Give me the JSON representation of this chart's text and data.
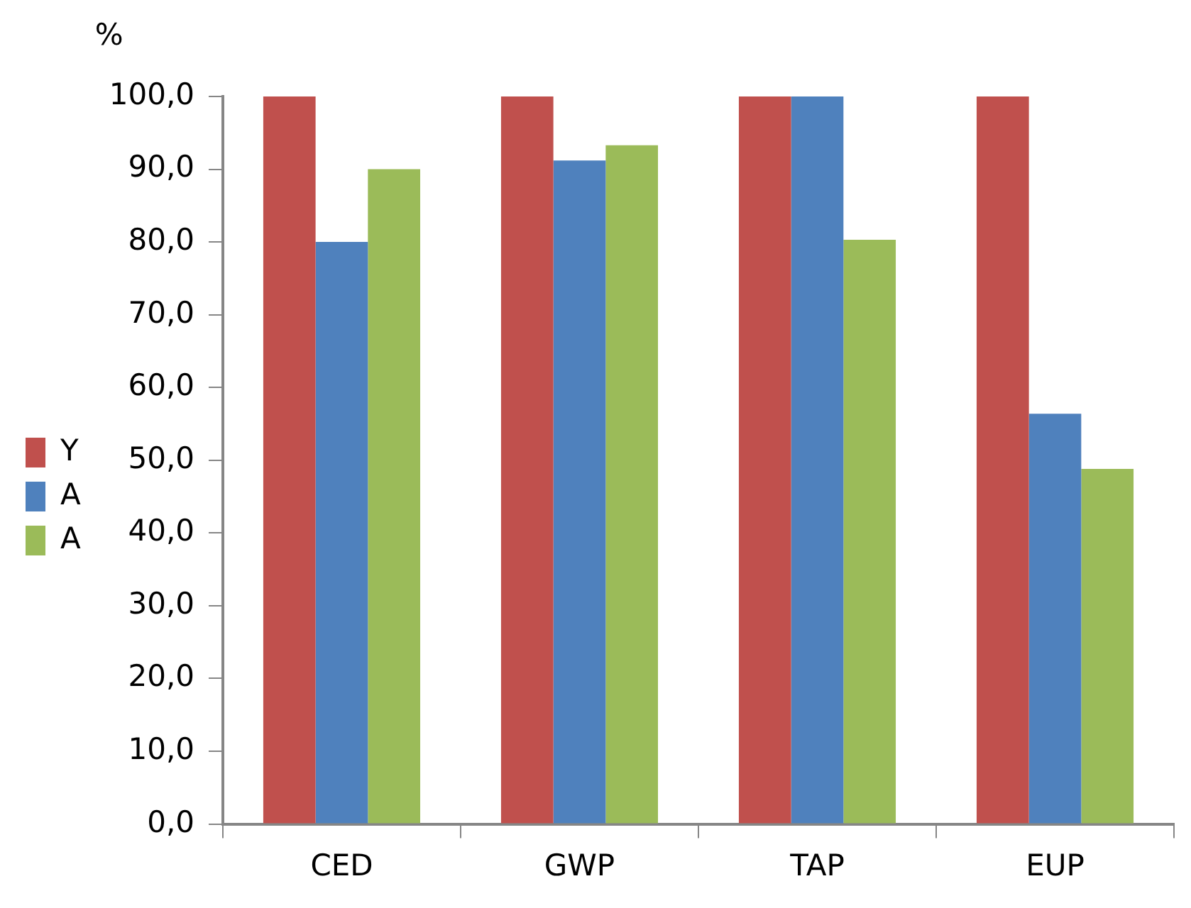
{
  "chart_data": {
    "type": "bar",
    "ylabel": "%",
    "categories": [
      "CED",
      "GWP",
      "TAP",
      "EUP"
    ],
    "series": [
      {
        "name": "Y",
        "color": "#c0504d",
        "values": [
          100,
          100,
          100,
          100
        ]
      },
      {
        "name": "A",
        "color": "#4f81bd",
        "values": [
          80,
          91.2,
          100,
          56.4
        ]
      },
      {
        "name": "A",
        "color": "#9bbb59",
        "values": [
          90,
          93.3,
          80.3,
          48.8
        ]
      }
    ],
    "ylim": [
      0,
      100
    ],
    "yticks": [
      {
        "value": 0,
        "label": "0,0"
      },
      {
        "value": 10,
        "label": "10,0"
      },
      {
        "value": 20,
        "label": "20,0"
      },
      {
        "value": 30,
        "label": "30,0"
      },
      {
        "value": 40,
        "label": "40,0"
      },
      {
        "value": 50,
        "label": "50,0"
      },
      {
        "value": 60,
        "label": "60,0"
      },
      {
        "value": 70,
        "label": "70,0"
      },
      {
        "value": 80,
        "label": "80,0"
      },
      {
        "value": 90,
        "label": "90,0"
      },
      {
        "value": 100,
        "label": "100,0"
      }
    ],
    "grid": false,
    "legend": "left"
  }
}
